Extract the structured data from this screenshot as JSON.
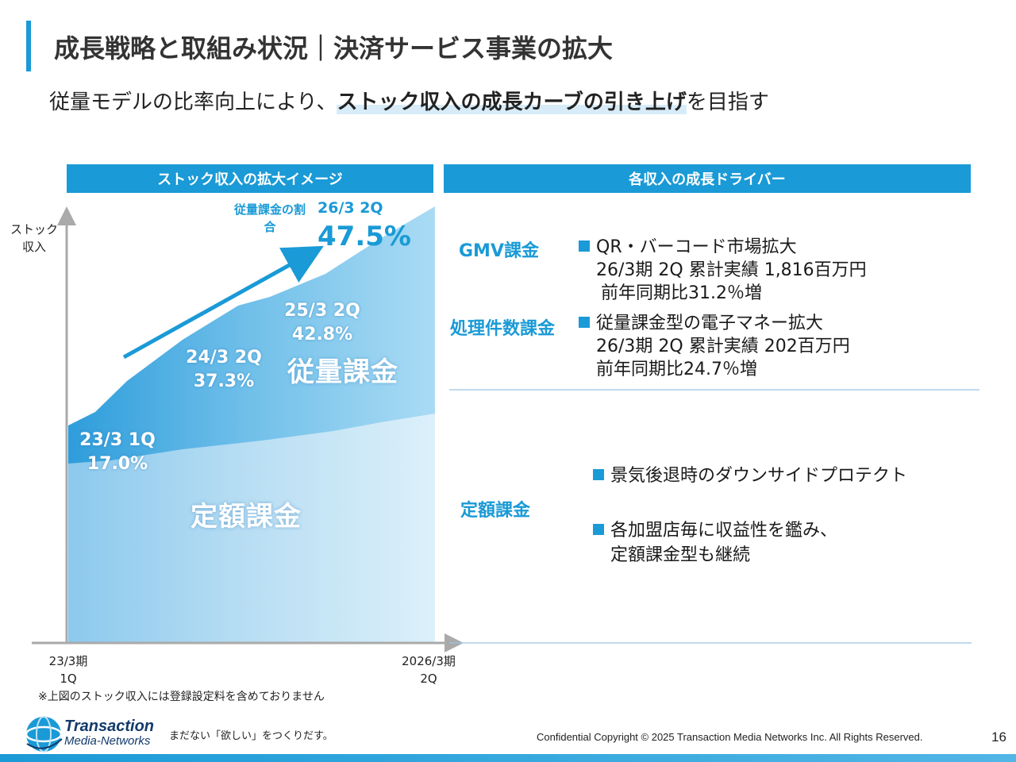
{
  "header": {
    "title": "成長戦略と取組み状況｜決済サービス事業の拡大",
    "subtitle_pre": "従量モデルの比率向上により、",
    "subtitle_highlight": "ストック収入の成長カーブの引き上げ",
    "subtitle_post": "を目指す"
  },
  "left_panel": {
    "header": "ストック収入の拡大イメージ",
    "y_axis_label": "ストック収入",
    "x_start_line1": "23/3期",
    "x_start_line2": "1Q",
    "x_end_line1": "2026/3期",
    "x_end_line2": "2Q",
    "area_variable": "従量課金",
    "area_fixed": "定額課金",
    "ratio_caption": "従量課金の割合",
    "note": "※上図のストック収入には登録設定料を含めておりません"
  },
  "chart_data": {
    "type": "area",
    "title": "ストック収入の拡大イメージ",
    "ylabel": "ストック収入",
    "x_range": [
      "23/3期 1Q",
      "2026/3期 2Q"
    ],
    "series": [
      {
        "name": "定額課金"
      },
      {
        "name": "従量課金"
      }
    ],
    "share_labels": [
      {
        "period": "23/3 1Q",
        "value": "17.0%"
      },
      {
        "period": "24/3 2Q",
        "value": "37.3%"
      },
      {
        "period": "25/3 2Q",
        "value": "42.8%"
      },
      {
        "period": "26/3 2Q",
        "value": "47.5%"
      }
    ],
    "share_values": [
      17.0,
      37.3,
      42.8,
      47.5
    ]
  },
  "right_panel": {
    "header": "各収入の成長ドライバー",
    "drivers": [
      {
        "name": "GMV課金",
        "bullet": "QR・バーコード市場拡大",
        "line2": "26/3期 2Q 累計実績 1,816百万円",
        "line3": "前年同期比31.2％増"
      },
      {
        "name": "処理件数課金",
        "bullet": "従量課金型の電子マネー拡大",
        "line2": "26/3期 2Q 累計実績 202百万円",
        "line3": "前年同期比24.7％増"
      },
      {
        "name": "定額課金",
        "bullet1": "景気後退時のダウンサイドプロテクト",
        "bullet2": "各加盟店毎に収益性を鑑み、",
        "bullet2_line2": "定額課金型も継続"
      }
    ]
  },
  "footer": {
    "logo_line1": "Transaction",
    "logo_line2": "Media-Networks",
    "tagline": "まだない「欲しい」をつくりだす。",
    "copyright": "Confidential  Copyright © 2025 Transaction Media Networks Inc. All Rights Reserved.",
    "page_number": "16"
  },
  "colors": {
    "accent": "#1a9ad6",
    "variable_area": "#5db5e6",
    "fixed_area": "#c5e3f4"
  }
}
